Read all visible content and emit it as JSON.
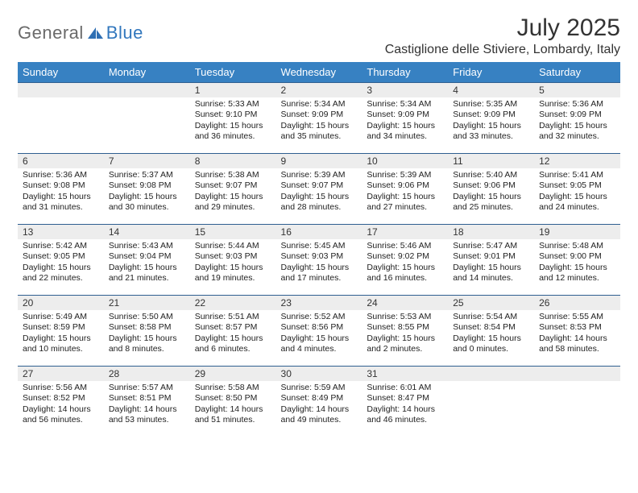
{
  "brand": {
    "part1": "General",
    "part2": "Blue"
  },
  "title": "July 2025",
  "location": "Castiglione delle Stiviere, Lombardy, Italy",
  "colors": {
    "header_bg": "#3781c2",
    "header_text": "#ffffff",
    "row_border": "#2f5f90",
    "daynum_bg": "#ededed",
    "text": "#222222",
    "brand_gray": "#6a6a6a",
    "brand_blue": "#3277bd",
    "page_bg": "#ffffff"
  },
  "weekdays": [
    "Sunday",
    "Monday",
    "Tuesday",
    "Wednesday",
    "Thursday",
    "Friday",
    "Saturday"
  ],
  "weeks": [
    [
      {
        "day": "",
        "sunrise": "",
        "sunset": "",
        "daylight": ""
      },
      {
        "day": "",
        "sunrise": "",
        "sunset": "",
        "daylight": ""
      },
      {
        "day": "1",
        "sunrise": "Sunrise: 5:33 AM",
        "sunset": "Sunset: 9:10 PM",
        "daylight": "Daylight: 15 hours and 36 minutes."
      },
      {
        "day": "2",
        "sunrise": "Sunrise: 5:34 AM",
        "sunset": "Sunset: 9:09 PM",
        "daylight": "Daylight: 15 hours and 35 minutes."
      },
      {
        "day": "3",
        "sunrise": "Sunrise: 5:34 AM",
        "sunset": "Sunset: 9:09 PM",
        "daylight": "Daylight: 15 hours and 34 minutes."
      },
      {
        "day": "4",
        "sunrise": "Sunrise: 5:35 AM",
        "sunset": "Sunset: 9:09 PM",
        "daylight": "Daylight: 15 hours and 33 minutes."
      },
      {
        "day": "5",
        "sunrise": "Sunrise: 5:36 AM",
        "sunset": "Sunset: 9:09 PM",
        "daylight": "Daylight: 15 hours and 32 minutes."
      }
    ],
    [
      {
        "day": "6",
        "sunrise": "Sunrise: 5:36 AM",
        "sunset": "Sunset: 9:08 PM",
        "daylight": "Daylight: 15 hours and 31 minutes."
      },
      {
        "day": "7",
        "sunrise": "Sunrise: 5:37 AM",
        "sunset": "Sunset: 9:08 PM",
        "daylight": "Daylight: 15 hours and 30 minutes."
      },
      {
        "day": "8",
        "sunrise": "Sunrise: 5:38 AM",
        "sunset": "Sunset: 9:07 PM",
        "daylight": "Daylight: 15 hours and 29 minutes."
      },
      {
        "day": "9",
        "sunrise": "Sunrise: 5:39 AM",
        "sunset": "Sunset: 9:07 PM",
        "daylight": "Daylight: 15 hours and 28 minutes."
      },
      {
        "day": "10",
        "sunrise": "Sunrise: 5:39 AM",
        "sunset": "Sunset: 9:06 PM",
        "daylight": "Daylight: 15 hours and 27 minutes."
      },
      {
        "day": "11",
        "sunrise": "Sunrise: 5:40 AM",
        "sunset": "Sunset: 9:06 PM",
        "daylight": "Daylight: 15 hours and 25 minutes."
      },
      {
        "day": "12",
        "sunrise": "Sunrise: 5:41 AM",
        "sunset": "Sunset: 9:05 PM",
        "daylight": "Daylight: 15 hours and 24 minutes."
      }
    ],
    [
      {
        "day": "13",
        "sunrise": "Sunrise: 5:42 AM",
        "sunset": "Sunset: 9:05 PM",
        "daylight": "Daylight: 15 hours and 22 minutes."
      },
      {
        "day": "14",
        "sunrise": "Sunrise: 5:43 AM",
        "sunset": "Sunset: 9:04 PM",
        "daylight": "Daylight: 15 hours and 21 minutes."
      },
      {
        "day": "15",
        "sunrise": "Sunrise: 5:44 AM",
        "sunset": "Sunset: 9:03 PM",
        "daylight": "Daylight: 15 hours and 19 minutes."
      },
      {
        "day": "16",
        "sunrise": "Sunrise: 5:45 AM",
        "sunset": "Sunset: 9:03 PM",
        "daylight": "Daylight: 15 hours and 17 minutes."
      },
      {
        "day": "17",
        "sunrise": "Sunrise: 5:46 AM",
        "sunset": "Sunset: 9:02 PM",
        "daylight": "Daylight: 15 hours and 16 minutes."
      },
      {
        "day": "18",
        "sunrise": "Sunrise: 5:47 AM",
        "sunset": "Sunset: 9:01 PM",
        "daylight": "Daylight: 15 hours and 14 minutes."
      },
      {
        "day": "19",
        "sunrise": "Sunrise: 5:48 AM",
        "sunset": "Sunset: 9:00 PM",
        "daylight": "Daylight: 15 hours and 12 minutes."
      }
    ],
    [
      {
        "day": "20",
        "sunrise": "Sunrise: 5:49 AM",
        "sunset": "Sunset: 8:59 PM",
        "daylight": "Daylight: 15 hours and 10 minutes."
      },
      {
        "day": "21",
        "sunrise": "Sunrise: 5:50 AM",
        "sunset": "Sunset: 8:58 PM",
        "daylight": "Daylight: 15 hours and 8 minutes."
      },
      {
        "day": "22",
        "sunrise": "Sunrise: 5:51 AM",
        "sunset": "Sunset: 8:57 PM",
        "daylight": "Daylight: 15 hours and 6 minutes."
      },
      {
        "day": "23",
        "sunrise": "Sunrise: 5:52 AM",
        "sunset": "Sunset: 8:56 PM",
        "daylight": "Daylight: 15 hours and 4 minutes."
      },
      {
        "day": "24",
        "sunrise": "Sunrise: 5:53 AM",
        "sunset": "Sunset: 8:55 PM",
        "daylight": "Daylight: 15 hours and 2 minutes."
      },
      {
        "day": "25",
        "sunrise": "Sunrise: 5:54 AM",
        "sunset": "Sunset: 8:54 PM",
        "daylight": "Daylight: 15 hours and 0 minutes."
      },
      {
        "day": "26",
        "sunrise": "Sunrise: 5:55 AM",
        "sunset": "Sunset: 8:53 PM",
        "daylight": "Daylight: 14 hours and 58 minutes."
      }
    ],
    [
      {
        "day": "27",
        "sunrise": "Sunrise: 5:56 AM",
        "sunset": "Sunset: 8:52 PM",
        "daylight": "Daylight: 14 hours and 56 minutes."
      },
      {
        "day": "28",
        "sunrise": "Sunrise: 5:57 AM",
        "sunset": "Sunset: 8:51 PM",
        "daylight": "Daylight: 14 hours and 53 minutes."
      },
      {
        "day": "29",
        "sunrise": "Sunrise: 5:58 AM",
        "sunset": "Sunset: 8:50 PM",
        "daylight": "Daylight: 14 hours and 51 minutes."
      },
      {
        "day": "30",
        "sunrise": "Sunrise: 5:59 AM",
        "sunset": "Sunset: 8:49 PM",
        "daylight": "Daylight: 14 hours and 49 minutes."
      },
      {
        "day": "31",
        "sunrise": "Sunrise: 6:01 AM",
        "sunset": "Sunset: 8:47 PM",
        "daylight": "Daylight: 14 hours and 46 minutes."
      },
      {
        "day": "",
        "sunrise": "",
        "sunset": "",
        "daylight": ""
      },
      {
        "day": "",
        "sunrise": "",
        "sunset": "",
        "daylight": ""
      }
    ]
  ]
}
